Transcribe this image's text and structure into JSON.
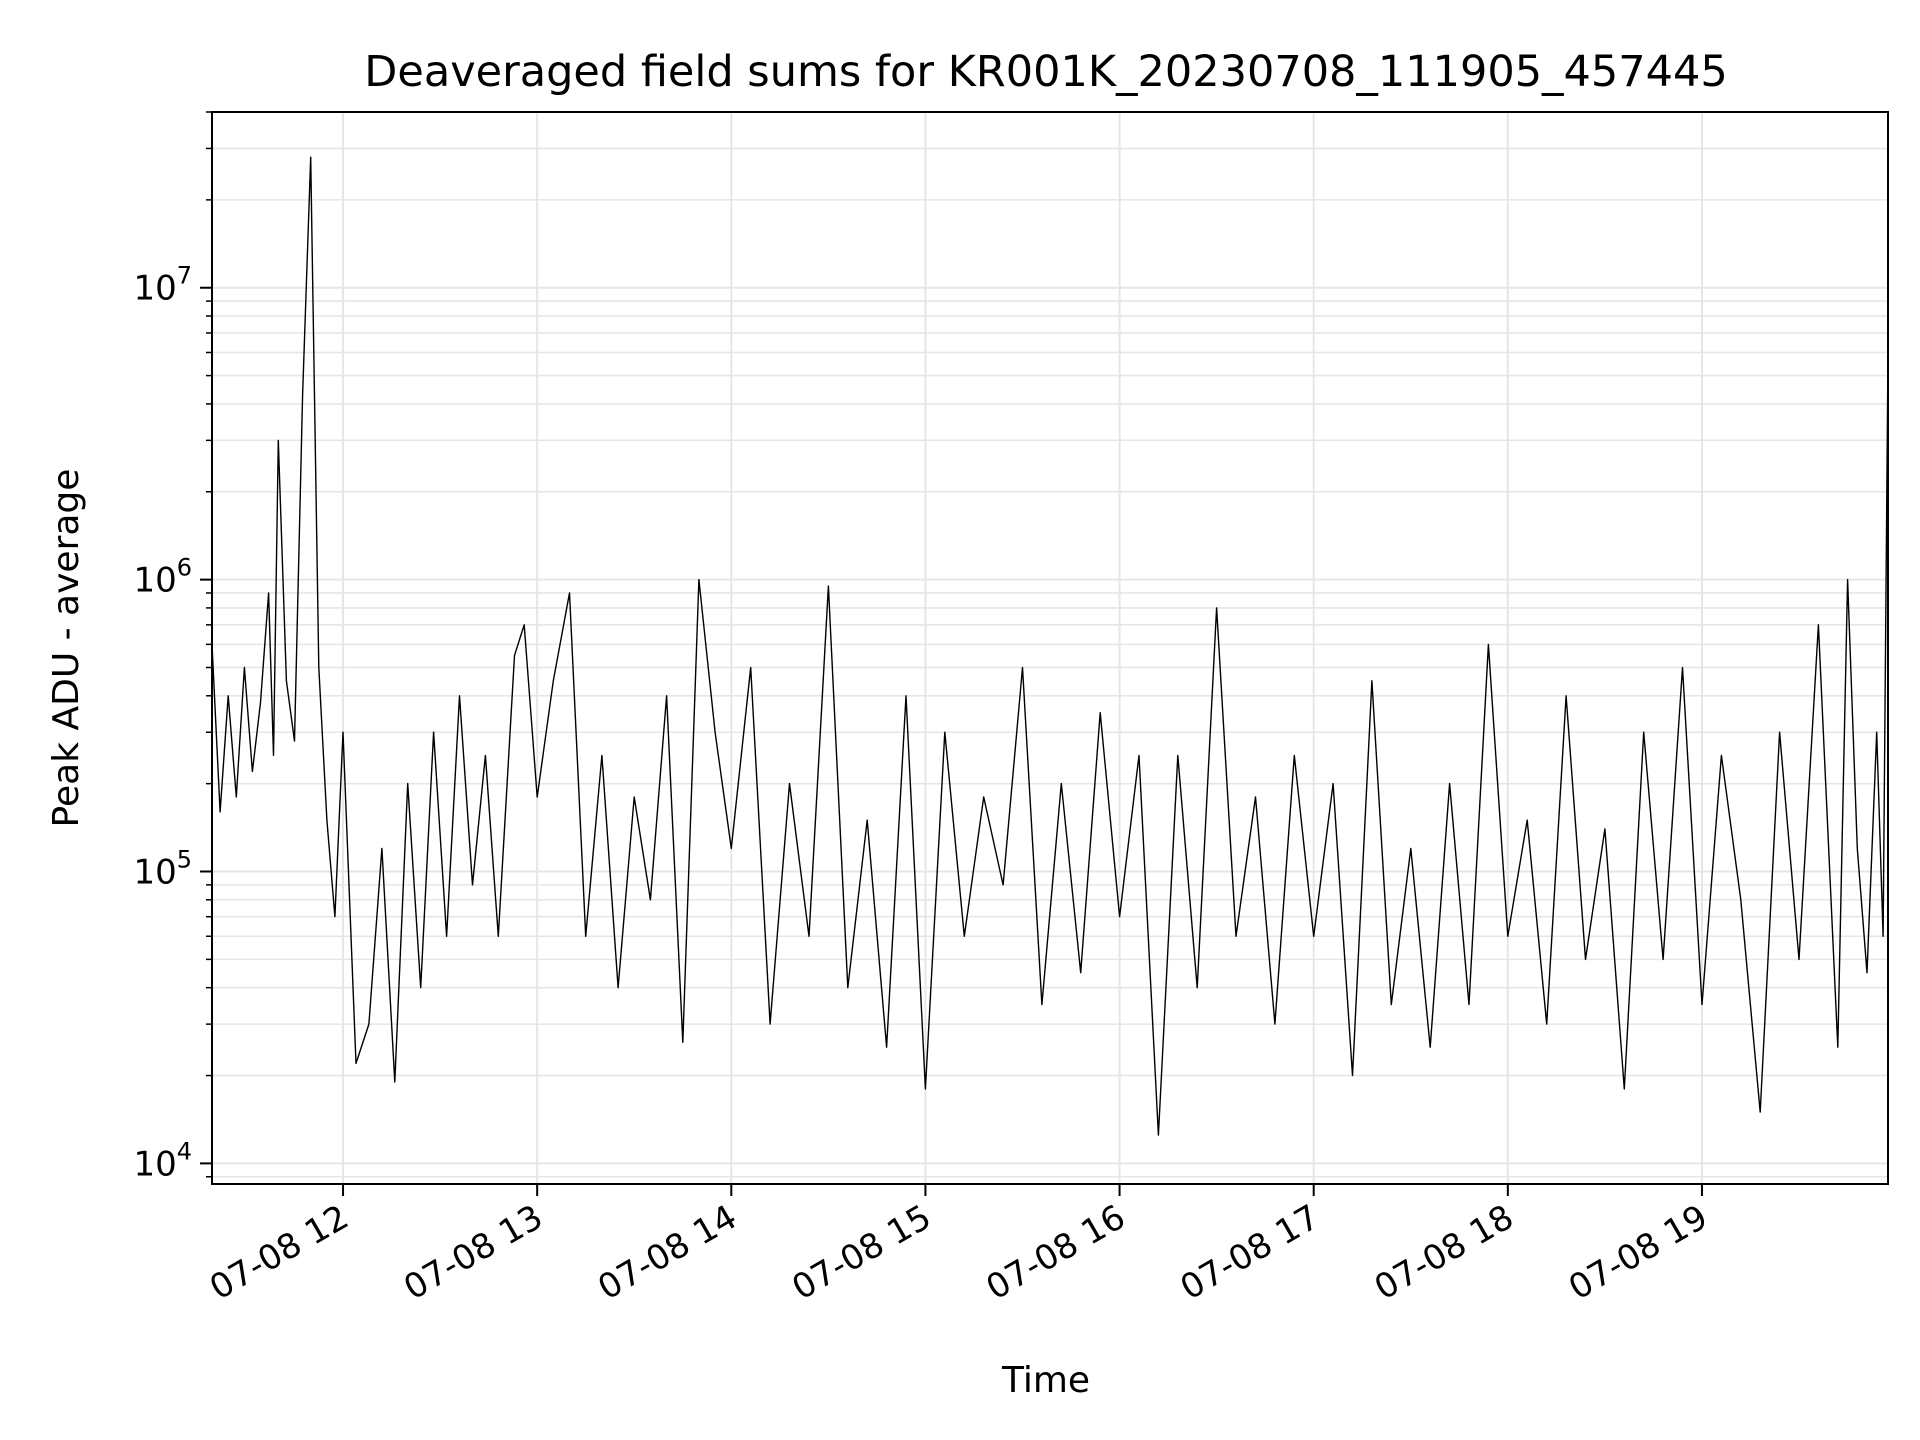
{
  "chart_data": {
    "type": "line",
    "title": "Deaveraged field sums for KR001K_20230708_111905_457445",
    "xlabel": "Time",
    "ylabel": "Peak ADU - average",
    "yscale": "log",
    "ylim": [
      8500,
      40000000
    ],
    "xlim": [
      "2023-07-08 11:19:30",
      "2023-07-08 19:57:30"
    ],
    "grid": true,
    "line_color": "#000000",
    "grid_color": "#e6e6e6",
    "x_ticks": [
      {
        "label": "07-08 12",
        "time": "2023-07-08 12:00"
      },
      {
        "label": "07-08 13",
        "time": "2023-07-08 13:00"
      },
      {
        "label": "07-08 14",
        "time": "2023-07-08 14:00"
      },
      {
        "label": "07-08 15",
        "time": "2023-07-08 15:00"
      },
      {
        "label": "07-08 16",
        "time": "2023-07-08 16:00"
      },
      {
        "label": "07-08 17",
        "time": "2023-07-08 17:00"
      },
      {
        "label": "07-08 18",
        "time": "2023-07-08 18:00"
      },
      {
        "label": "07-08 19",
        "time": "2023-07-08 19:00"
      }
    ],
    "y_ticks": [
      {
        "base": "10",
        "exp": "4",
        "value": 10000
      },
      {
        "base": "10",
        "exp": "5",
        "value": 100000
      },
      {
        "base": "10",
        "exp": "6",
        "value": 1000000
      },
      {
        "base": "10",
        "exp": "7",
        "value": 10000000
      }
    ],
    "series": [
      {
        "x": [
          "2023-07-08 11:19:30",
          "2023-07-08 11:22:00",
          "2023-07-08 11:24:30",
          "2023-07-08 11:27:00",
          "2023-07-08 11:29:30",
          "2023-07-08 11:32:00",
          "2023-07-08 11:34:30",
          "2023-07-08 11:37:00",
          "2023-07-08 11:38:30",
          "2023-07-08 11:40:00",
          "2023-07-08 11:42:30",
          "2023-07-08 11:45:00",
          "2023-07-08 11:47:30",
          "2023-07-08 11:50:00",
          "2023-07-08 11:52:30",
          "2023-07-08 11:55:00",
          "2023-07-08 11:57:30",
          "2023-07-08 12:00:00",
          "2023-07-08 12:04:00",
          "2023-07-08 12:08:00",
          "2023-07-08 12:12:00",
          "2023-07-08 12:16:00",
          "2023-07-08 12:20:00",
          "2023-07-08 12:24:00",
          "2023-07-08 12:28:00",
          "2023-07-08 12:32:00",
          "2023-07-08 12:36:00",
          "2023-07-08 12:40:00",
          "2023-07-08 12:44:00",
          "2023-07-08 12:48:00",
          "2023-07-08 12:53:00",
          "2023-07-08 12:56:00",
          "2023-07-08 13:00:00",
          "2023-07-08 13:05:00",
          "2023-07-08 13:10:00",
          "2023-07-08 13:15:00",
          "2023-07-08 13:20:00",
          "2023-07-08 13:25:00",
          "2023-07-08 13:30:00",
          "2023-07-08 13:35:00",
          "2023-07-08 13:40:00",
          "2023-07-08 13:45:00",
          "2023-07-08 13:50:00",
          "2023-07-08 13:55:00",
          "2023-07-08 14:00:00",
          "2023-07-08 14:06:00",
          "2023-07-08 14:12:00",
          "2023-07-08 14:18:00",
          "2023-07-08 14:24:00",
          "2023-07-08 14:30:00",
          "2023-07-08 14:36:00",
          "2023-07-08 14:42:00",
          "2023-07-08 14:48:00",
          "2023-07-08 14:54:00",
          "2023-07-08 15:00:00",
          "2023-07-08 15:06:00",
          "2023-07-08 15:12:00",
          "2023-07-08 15:18:00",
          "2023-07-08 15:24:00",
          "2023-07-08 15:30:00",
          "2023-07-08 15:36:00",
          "2023-07-08 15:42:00",
          "2023-07-08 15:48:00",
          "2023-07-08 15:54:00",
          "2023-07-08 16:00:00",
          "2023-07-08 16:06:00",
          "2023-07-08 16:12:00",
          "2023-07-08 16:18:00",
          "2023-07-08 16:24:00",
          "2023-07-08 16:30:00",
          "2023-07-08 16:36:00",
          "2023-07-08 16:42:00",
          "2023-07-08 16:48:00",
          "2023-07-08 16:54:00",
          "2023-07-08 17:00:00",
          "2023-07-08 17:06:00",
          "2023-07-08 17:12:00",
          "2023-07-08 17:18:00",
          "2023-07-08 17:24:00",
          "2023-07-08 17:30:00",
          "2023-07-08 17:36:00",
          "2023-07-08 17:42:00",
          "2023-07-08 17:48:00",
          "2023-07-08 17:54:00",
          "2023-07-08 18:00:00",
          "2023-07-08 18:06:00",
          "2023-07-08 18:12:00",
          "2023-07-08 18:18:00",
          "2023-07-08 18:24:00",
          "2023-07-08 18:30:00",
          "2023-07-08 18:36:00",
          "2023-07-08 18:42:00",
          "2023-07-08 18:48:00",
          "2023-07-08 18:54:00",
          "2023-07-08 19:00:00",
          "2023-07-08 19:06:00",
          "2023-07-08 19:12:00",
          "2023-07-08 19:18:00",
          "2023-07-08 19:24:00",
          "2023-07-08 19:30:00",
          "2023-07-08 19:36:00",
          "2023-07-08 19:42:00",
          "2023-07-08 19:45:00",
          "2023-07-08 19:48:00",
          "2023-07-08 19:51:00",
          "2023-07-08 19:54:00",
          "2023-07-08 19:56:00",
          "2023-07-08 19:57:30"
        ],
        "y": [
          600000,
          160000,
          400000,
          180000,
          500000,
          220000,
          380000,
          900000,
          250000,
          3000000,
          450000,
          280000,
          4300000,
          28000000,
          500000,
          150000,
          70000,
          300000,
          22000,
          30000,
          120000,
          19000,
          200000,
          40000,
          300000,
          60000,
          400000,
          90000,
          250000,
          60000,
          550000,
          700000,
          180000,
          450000,
          900000,
          60000,
          250000,
          40000,
          180000,
          80000,
          400000,
          26000,
          1000000,
          300000,
          120000,
          500000,
          30000,
          200000,
          60000,
          950000,
          40000,
          150000,
          25000,
          400000,
          18000,
          300000,
          60000,
          180000,
          90000,
          500000,
          35000,
          200000,
          45000,
          350000,
          70000,
          250000,
          12500,
          250000,
          40000,
          800000,
          60000,
          180000,
          30000,
          250000,
          60000,
          200000,
          20000,
          450000,
          35000,
          120000,
          25000,
          200000,
          35000,
          600000,
          60000,
          150000,
          30000,
          400000,
          50000,
          140000,
          18000,
          300000,
          50000,
          500000,
          35000,
          250000,
          80000,
          15000,
          300000,
          50000,
          700000,
          25000,
          1000000,
          120000,
          45000,
          300000,
          60000,
          6000000
        ]
      }
    ],
    "note_points_per_hour": null
  }
}
